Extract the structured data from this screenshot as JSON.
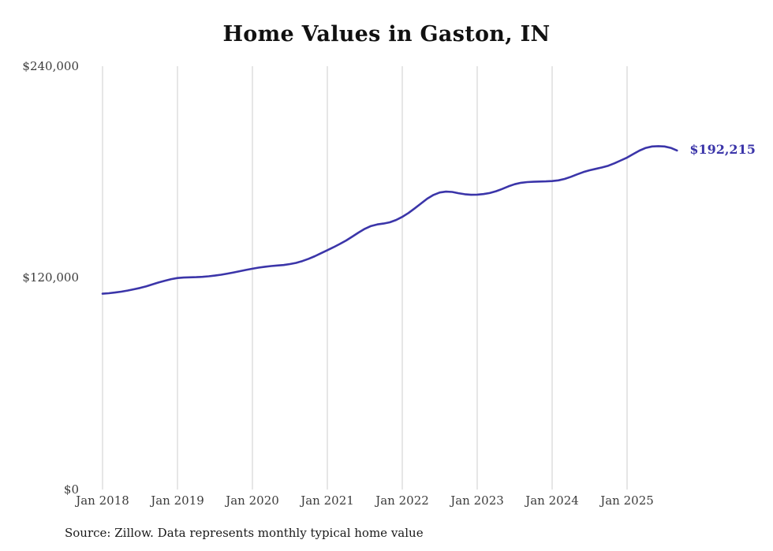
{
  "title": "Home Values in Gaston, IN",
  "source_note": "Source: Zillow. Data represents monthly typical home value",
  "end_label": "$192,215",
  "colors": {
    "line": "#3b35a9",
    "grid": "#d8d8d8",
    "axis_text": "#3c3c3c",
    "title_text": "#111111"
  },
  "chart_data": {
    "type": "line",
    "title": "Home Values in Gaston, IN",
    "xlabel": "",
    "ylabel": "",
    "ylim": [
      0,
      240000
    ],
    "y_ticks": [
      "$0",
      "$120,000",
      "$240,000"
    ],
    "x_ticks": [
      "Jan 2018",
      "Jan 2019",
      "Jan 2020",
      "Jan 2021",
      "Jan 2022",
      "Jan 2023",
      "Jan 2024",
      "Jan 2025"
    ],
    "grid": "vertical-only",
    "legend": "none",
    "annotation": {
      "label": "$192,215",
      "value": 192215,
      "position": "line-end"
    },
    "x": [
      "2018-01",
      "2018-02",
      "2018-03",
      "2018-04",
      "2018-05",
      "2018-06",
      "2018-07",
      "2018-08",
      "2018-09",
      "2018-10",
      "2018-11",
      "2018-12",
      "2019-01",
      "2019-02",
      "2019-03",
      "2019-04",
      "2019-05",
      "2019-06",
      "2019-07",
      "2019-08",
      "2019-09",
      "2019-10",
      "2019-11",
      "2019-12",
      "2020-01",
      "2020-02",
      "2020-03",
      "2020-04",
      "2020-05",
      "2020-06",
      "2020-07",
      "2020-08",
      "2020-09",
      "2020-10",
      "2020-11",
      "2020-12",
      "2021-01",
      "2021-02",
      "2021-03",
      "2021-04",
      "2021-05",
      "2021-06",
      "2021-07",
      "2021-08",
      "2021-09",
      "2021-10",
      "2021-11",
      "2021-12",
      "2022-01",
      "2022-02",
      "2022-03",
      "2022-04",
      "2022-05",
      "2022-06",
      "2022-07",
      "2022-08",
      "2022-09",
      "2022-10",
      "2022-11",
      "2022-12",
      "2023-01",
      "2023-02",
      "2023-03",
      "2023-04",
      "2023-05",
      "2023-06",
      "2023-07",
      "2023-08",
      "2023-09",
      "2023-10",
      "2023-11",
      "2023-12",
      "2024-01",
      "2024-02",
      "2024-03",
      "2024-04",
      "2024-05",
      "2024-06",
      "2024-07",
      "2024-08",
      "2024-09",
      "2024-10",
      "2024-11",
      "2024-12",
      "2025-01",
      "2025-02",
      "2025-03",
      "2025-04",
      "2025-05",
      "2025-06",
      "2025-07",
      "2025-08",
      "2025-09"
    ],
    "values": [
      111000,
      111300,
      111700,
      112200,
      112800,
      113500,
      114300,
      115200,
      116300,
      117400,
      118400,
      119300,
      119900,
      120200,
      120300,
      120400,
      120600,
      120900,
      121300,
      121800,
      122400,
      123100,
      123800,
      124500,
      125200,
      125800,
      126300,
      126700,
      127000,
      127300,
      127800,
      128500,
      129500,
      130800,
      132300,
      134000,
      135700,
      137400,
      139200,
      141200,
      143400,
      145700,
      147800,
      149400,
      150300,
      150800,
      151500,
      152800,
      154600,
      156800,
      159400,
      162200,
      164900,
      167000,
      168400,
      168900,
      168700,
      168000,
      167400,
      167100,
      167200,
      167500,
      168100,
      169100,
      170400,
      171900,
      173100,
      173900,
      174300,
      174500,
      174600,
      174700,
      174900,
      175300,
      176100,
      177300,
      178700,
      180000,
      181000,
      181800,
      182600,
      183600,
      185000,
      186600,
      188200,
      190200,
      192200,
      193700,
      194500,
      194700,
      194500,
      193700,
      192215
    ]
  }
}
